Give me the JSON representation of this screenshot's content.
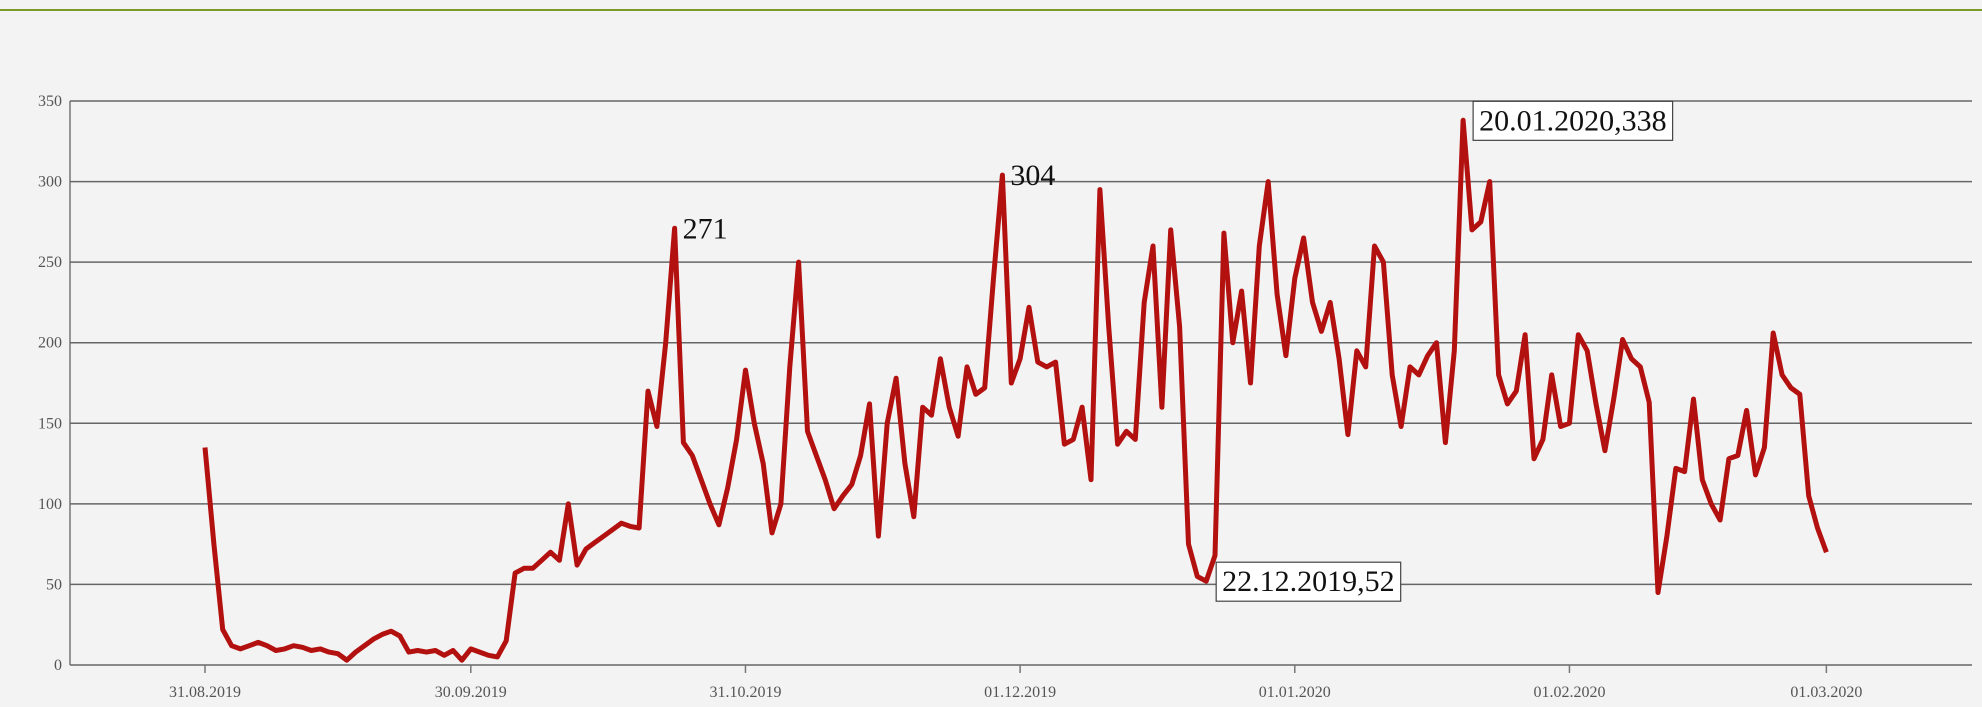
{
  "chart_data": {
    "type": "line",
    "categories": [
      "31.08.2019",
      null,
      null,
      null,
      null,
      null,
      null,
      null,
      null,
      null,
      null,
      null,
      null,
      null,
      null,
      null,
      null,
      null,
      null,
      null,
      null,
      null,
      null,
      null,
      null,
      null,
      null,
      null,
      null,
      null,
      "30.09.2019",
      null,
      null,
      null,
      null,
      null,
      null,
      null,
      null,
      null,
      null,
      null,
      null,
      null,
      null,
      null,
      null,
      null,
      null,
      null,
      null,
      null,
      null,
      null,
      null,
      null,
      null,
      null,
      null,
      null,
      null,
      "31.10.2019",
      null,
      null,
      null,
      null,
      null,
      null,
      null,
      null,
      null,
      null,
      null,
      null,
      null,
      null,
      null,
      null,
      null,
      null,
      null,
      null,
      null,
      null,
      null,
      null,
      null,
      null,
      null,
      null,
      null,
      null,
      "01.12.2019",
      null,
      null,
      null,
      null,
      null,
      null,
      null,
      null,
      null,
      null,
      null,
      null,
      null,
      null,
      null,
      null,
      null,
      null,
      null,
      null,
      null,
      null,
      null,
      null,
      null,
      null,
      null,
      null,
      null,
      null,
      "01.01.2020",
      null,
      null,
      null,
      null,
      null,
      null,
      null,
      null,
      null,
      null,
      null,
      null,
      null,
      null,
      null,
      null,
      null,
      null,
      null,
      null,
      null,
      null,
      null,
      null,
      null,
      null,
      null,
      null,
      null,
      null,
      "01.02.2020",
      null,
      null,
      null,
      null,
      null,
      null,
      null,
      null,
      null,
      null,
      null,
      null,
      null,
      null,
      null,
      null,
      null,
      null,
      null,
      null,
      null,
      null,
      null,
      null,
      null,
      null,
      null,
      null,
      "01.03.2020"
    ],
    "values": [
      135,
      75,
      22,
      12,
      10,
      12,
      14,
      12,
      9,
      10,
      12,
      11,
      9,
      10,
      8,
      7,
      3,
      8,
      12,
      16,
      19,
      21,
      18,
      8,
      9,
      8,
      9,
      6,
      9,
      3,
      10,
      8,
      6,
      5,
      15,
      57,
      60,
      60,
      65,
      70,
      65,
      100,
      62,
      72,
      76,
      80,
      84,
      88,
      86,
      85,
      170,
      148,
      200,
      271,
      138,
      130,
      115,
      100,
      87,
      110,
      140,
      183,
      150,
      125,
      82,
      100,
      185,
      250,
      145,
      130,
      115,
      97,
      105,
      112,
      130,
      162,
      80,
      150,
      178,
      125,
      92,
      160,
      155,
      190,
      160,
      142,
      185,
      168,
      172,
      240,
      304,
      175,
      190,
      222,
      188,
      185,
      188,
      137,
      140,
      160,
      115,
      295,
      210,
      137,
      145,
      140,
      225,
      260,
      160,
      270,
      210,
      75,
      55,
      52,
      68,
      268,
      200,
      232,
      175,
      260,
      300,
      230,
      192,
      240,
      265,
      225,
      207,
      225,
      190,
      143,
      195,
      185,
      260,
      250,
      180,
      148,
      185,
      180,
      192,
      200,
      138,
      195,
      338,
      270,
      275,
      300,
      180,
      162,
      170,
      205,
      128,
      140,
      180,
      148,
      150,
      205,
      195,
      162,
      133,
      165,
      202,
      190,
      185,
      163,
      45,
      80,
      122,
      120,
      165,
      115,
      100,
      90,
      128,
      130,
      158,
      118,
      135,
      206,
      180,
      172,
      168,
      105,
      85,
      70
    ],
    "value_labels": [
      null,
      null,
      null,
      null,
      null,
      null,
      null,
      null,
      null,
      null,
      null,
      null,
      null,
      null,
      null,
      null,
      null,
      null,
      null,
      null,
      null,
      null,
      null,
      null,
      null,
      null,
      null,
      null,
      null,
      null,
      null,
      null,
      null,
      null,
      null,
      null,
      null,
      null,
      null,
      null,
      null,
      null,
      null,
      null,
      null,
      null,
      null,
      null,
      null,
      null,
      null,
      null,
      null,
      "271",
      null,
      null,
      null,
      null,
      null,
      null,
      null,
      null,
      null,
      null,
      null,
      null,
      null,
      null,
      null,
      null,
      null,
      null,
      null,
      null,
      null,
      null,
      null,
      null,
      null,
      null,
      null,
      null,
      null,
      null,
      null,
      null,
      null,
      null,
      null,
      null,
      "304",
      null,
      null,
      null,
      null,
      null,
      null,
      null,
      null,
      null,
      null,
      null,
      null,
      null,
      null,
      null,
      null,
      null,
      null,
      null,
      null,
      null,
      null,
      "22.12.2019,52",
      null,
      null,
      null,
      null,
      null,
      null,
      null,
      null,
      null,
      null,
      null,
      null,
      null,
      null,
      null,
      null,
      null,
      null,
      null,
      null,
      null,
      null,
      null,
      null,
      null,
      null,
      null,
      null,
      "20.01.2020,338",
      null,
      null,
      null,
      null,
      null,
      null,
      null,
      null,
      null,
      null,
      null,
      null,
      null,
      null,
      null,
      null,
      null,
      null,
      null,
      null,
      null,
      null,
      null,
      null,
      null,
      null,
      null,
      null,
      null,
      null,
      null,
      null,
      null,
      null,
      null,
      null,
      null,
      null,
      null,
      null,
      null
    ],
    "color": "#b3110f",
    "ylim": [
      0,
      350
    ],
    "yticks": [
      0,
      50,
      100,
      150,
      200,
      250,
      300,
      350
    ],
    "grid": true
  }
}
